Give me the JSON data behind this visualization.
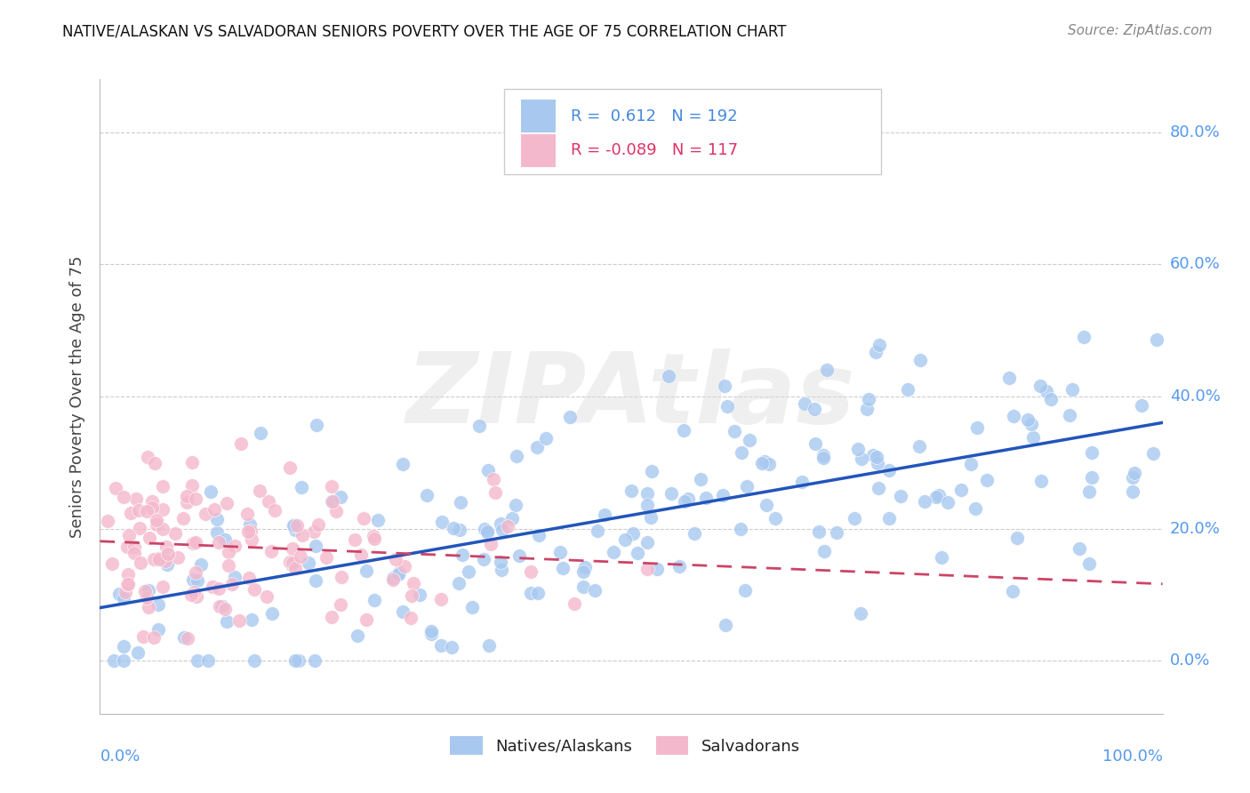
{
  "title": "NATIVE/ALASKAN VS SALVADORAN SENIORS POVERTY OVER THE AGE OF 75 CORRELATION CHART",
  "source": "Source: ZipAtlas.com",
  "ylabel": "Seniors Poverty Over the Age of 75",
  "legend_label1": "Natives/Alaskans",
  "legend_label2": "Salvadorans",
  "R1": 0.612,
  "N1": 192,
  "R2": -0.089,
  "N2": 117,
  "color_blue": "#a8c8f0",
  "color_pink": "#f4b8cc",
  "trend_blue": "#2255bb",
  "trend_pink": "#cc4466",
  "ytick_labels": [
    "0.0%",
    "20.0%",
    "40.0%",
    "60.0%",
    "80.0%"
  ],
  "ytick_values": [
    0.0,
    0.2,
    0.4,
    0.6,
    0.8
  ],
  "xtick_labels": [
    "0.0%",
    "100.0%"
  ],
  "xlim": [
    0.0,
    1.0
  ],
  "ylim": [
    -0.08,
    0.88
  ],
  "watermark": "ZIPAtlas",
  "bg_color": "#ffffff",
  "grid_color": "#cccccc",
  "axis_color": "#bbbbbb",
  "title_color": "#111111",
  "source_color": "#888888",
  "label_color": "#5599ee",
  "ylabel_color": "#444444",
  "legend_r1_color": "#4488dd",
  "legend_r2_color": "#dd3366"
}
